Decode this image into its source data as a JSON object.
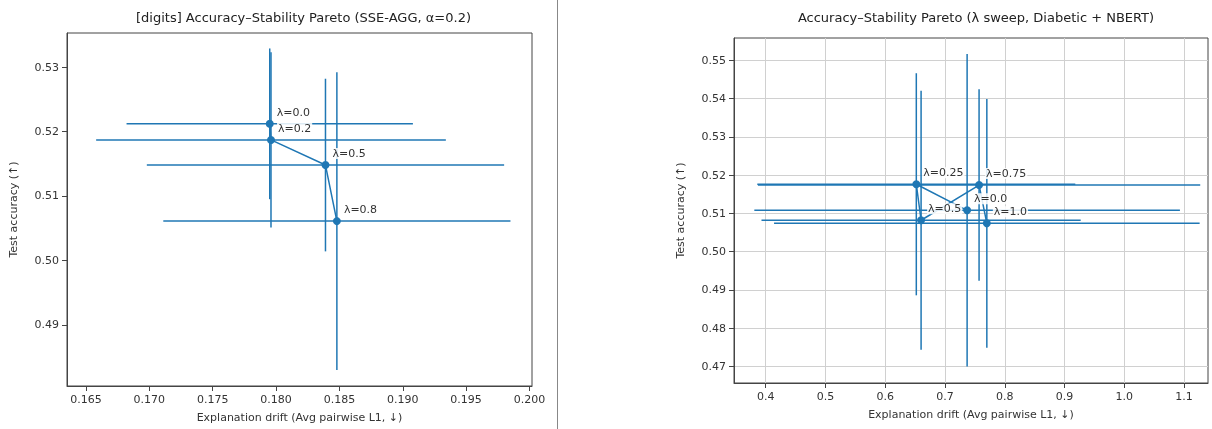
{
  "chart_data": [
    {
      "type": "line",
      "title": "[digits] Accuracy–Stability Pareto (SSE-AGG, α=0.2)",
      "xlabel": "Explanation drift (Avg pairwise L1, ↓)",
      "ylabel": "Test accuracy (↑)",
      "series": [
        {
          "color": "#1f77b4",
          "x": [
            0.1795,
            0.1796,
            0.1839,
            0.1848
          ],
          "values": [
            0.5212,
            0.5187,
            0.5148,
            0.5061
          ],
          "xerrors": [
            0.0113,
            0.0138,
            0.0141,
            0.0137
          ],
          "errors": [
            0.0117,
            0.0136,
            0.0134,
            0.0231
          ]
        }
      ],
      "xlim": [
        0.1635,
        0.2002
      ],
      "ylim": [
        0.4805,
        0.5353
      ],
      "xticks": [
        0.165,
        {
          "value": 0.17,
          "label": "0.170"
        },
        0.175,
        {
          "value": 0.18,
          "label": "0.180"
        },
        0.185,
        {
          "value": 0.19,
          "label": "0.190"
        },
        0.195,
        {
          "value": 0.2,
          "label": "0.200"
        }
      ],
      "yticks": [
        0.49,
        {
          "value": 0.5,
          "label": "0.50"
        },
        0.51,
        0.52,
        0.53
      ],
      "marker": "circle",
      "line_style": "solid",
      "grid": false,
      "annotations": [
        {
          "text": "λ=0.0",
          "x": 0.1795,
          "y": 0.5212
        },
        {
          "text": "λ=0.2",
          "x": 0.1796,
          "y": 0.5187
        },
        {
          "text": "λ=0.5",
          "x": 0.1839,
          "y": 0.5148
        },
        {
          "text": "λ=0.8",
          "x": 0.1848,
          "y": 0.5061
        }
      ]
    },
    {
      "type": "line",
      "title": "Accuracy–Stability Pareto (λ sweep, Diabetic + NBERT)",
      "xlabel": "Explanation drift (Avg pairwise L1, ↓)",
      "ylabel": "Test accuracy (↑)",
      "series": [
        {
          "color": "#1f77b4",
          "x": [
            0.737,
            0.652,
            0.66,
            0.757,
            0.77
          ],
          "values": [
            0.5108,
            0.5176,
            0.5082,
            0.5174,
            0.5074
          ],
          "xerrors": [
            0.356,
            0.266,
            0.267,
            0.37,
            0.356
          ],
          "errors": [
            0.0408,
            0.029,
            0.0338,
            0.025,
            0.0325
          ]
        }
      ],
      "xlim": [
        0.347,
        1.14
      ],
      "ylim": [
        0.4657,
        0.5558
      ],
      "xticks": [
        0.4,
        0.5,
        0.6,
        0.7,
        0.8,
        0.9,
        {
          "value": 1,
          "label": "1.0"
        },
        1.1
      ],
      "yticks": [
        0.47,
        0.48,
        0.49,
        {
          "value": 0.5,
          "label": "0.50"
        },
        0.51,
        0.52,
        0.53,
        0.54,
        0.55
      ],
      "marker": "circle",
      "line_style": "solid",
      "grid": true,
      "annotations": [
        {
          "text": "λ=0.0",
          "x": 0.737,
          "y": 0.5108
        },
        {
          "text": "λ=0.25",
          "x": 0.652,
          "y": 0.5176
        },
        {
          "text": "λ=0.5",
          "x": 0.66,
          "y": 0.5082
        },
        {
          "text": "λ=0.75",
          "x": 0.757,
          "y": 0.5174
        },
        {
          "text": "λ=1.0",
          "x": 0.77,
          "y": 0.5074
        }
      ]
    }
  ]
}
